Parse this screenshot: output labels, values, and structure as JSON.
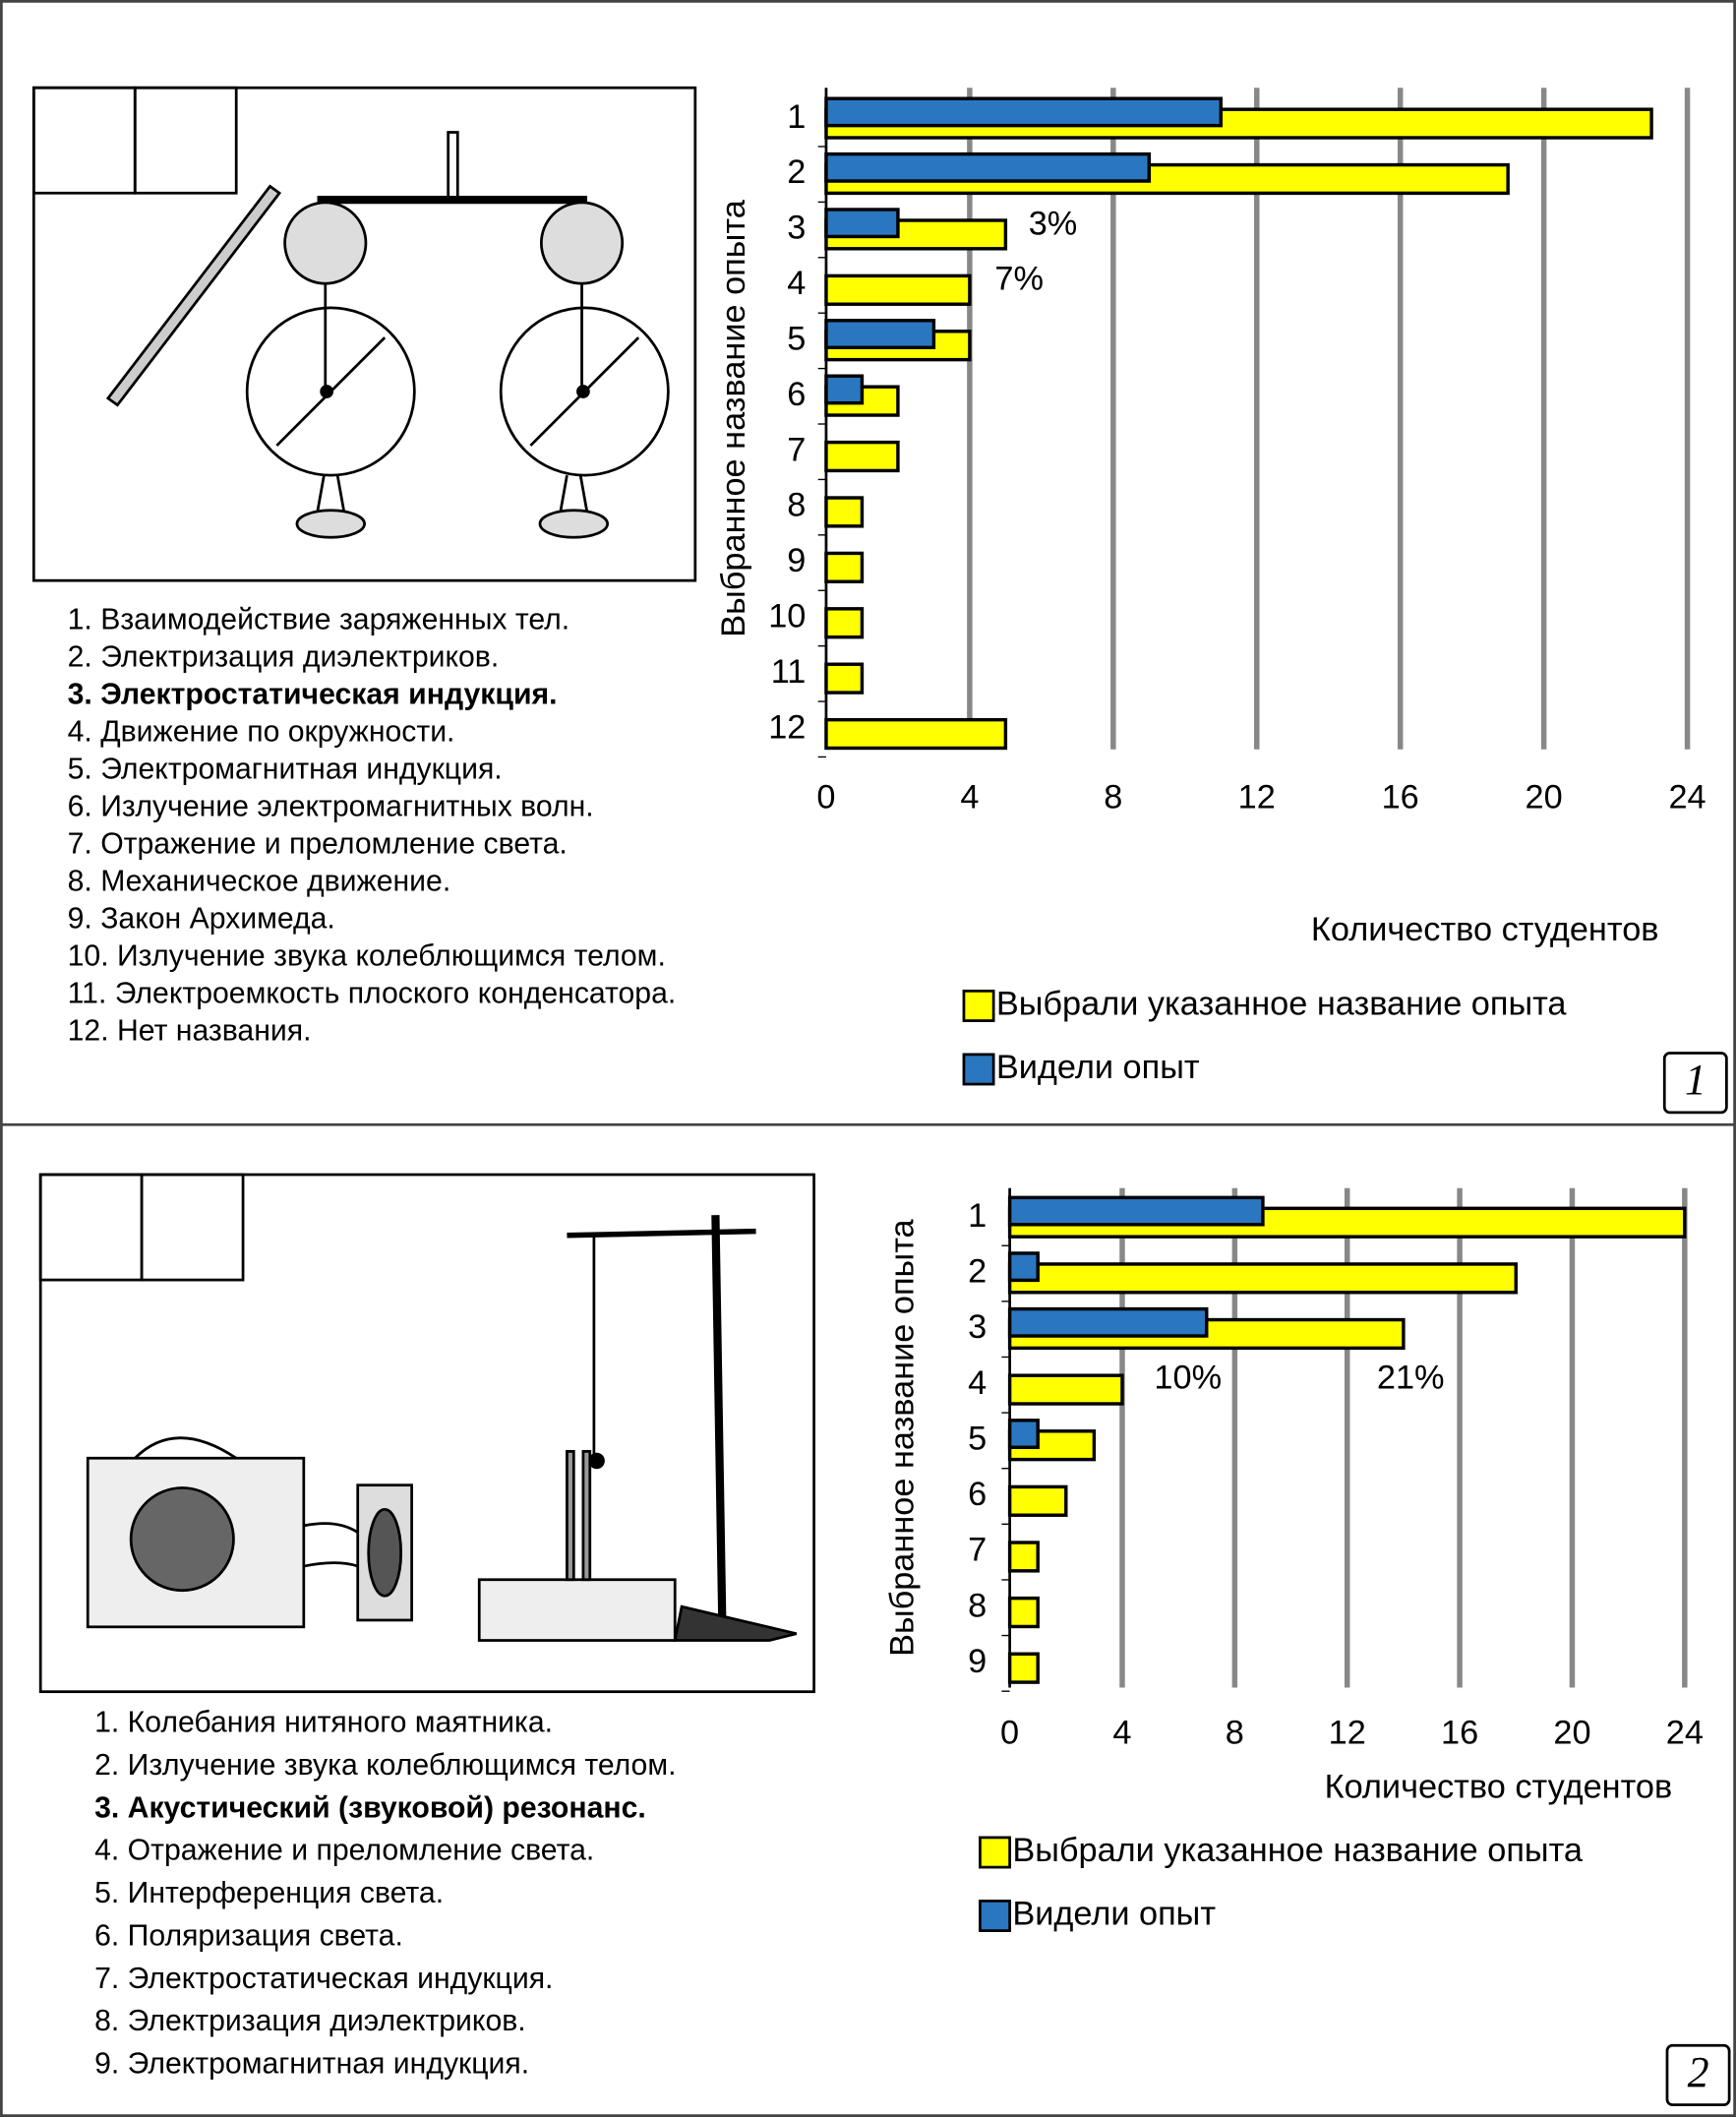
{
  "chart_data": [
    {
      "type": "bar",
      "orientation": "horizontal",
      "y_label": "Выбранное название опыта",
      "x_label": "Количество студентов",
      "categories": [
        "1",
        "2",
        "3",
        "4",
        "5",
        "6",
        "7",
        "8",
        "9",
        "10",
        "11",
        "12"
      ],
      "series": [
        {
          "name": "Выбрали указанное название опыта",
          "color": "#ffff00",
          "values": [
            23,
            19,
            5,
            4,
            4,
            2,
            2,
            1,
            1,
            1,
            1,
            5
          ]
        },
        {
          "name": "Видели опыт",
          "color": "#2a77c0",
          "values": [
            11,
            9,
            2,
            null,
            3,
            1,
            null,
            null,
            null,
            null,
            null,
            null
          ]
        }
      ],
      "xlim": [
        0,
        24
      ],
      "xticks": [
        0,
        4,
        8,
        12,
        16,
        20,
        24
      ],
      "grid": true,
      "annotations": [
        {
          "text": "3%"
        },
        {
          "text": "7%"
        }
      ]
    },
    {
      "type": "bar",
      "orientation": "horizontal",
      "y_label": "Выбранное название опыта",
      "x_label": "Количество студентов",
      "categories": [
        "1",
        "2",
        "3",
        "4",
        "5",
        "6",
        "7",
        "8",
        "9"
      ],
      "series": [
        {
          "name": "Выбрали указанное название опыта",
          "color": "#ffff00",
          "values": [
            24,
            18,
            14,
            4,
            3,
            2,
            1,
            1,
            1
          ]
        },
        {
          "name": "Видели опыт",
          "color": "#2a77c0",
          "values": [
            9,
            1,
            7,
            null,
            1,
            null,
            null,
            null,
            null
          ]
        }
      ],
      "xlim": [
        0,
        24
      ],
      "xticks": [
        0,
        4,
        8,
        12,
        16,
        20,
        24
      ],
      "grid": true,
      "annotations": [
        {
          "text": "10%"
        },
        {
          "text": "21%"
        }
      ]
    }
  ],
  "lists": [
    [
      "1. Взаимодействие заряженных тел.",
      "2. Электризация диэлектриков.",
      "3. Электростатическая индукция.",
      "4. Движение по окружности.",
      "5. Электромагнитная индукция.",
      "6. Излучение электромагнитных волн.",
      "7. Отражение и преломление света.",
      "8. Механическое движение.",
      "9. Закон Архимеда.",
      "10. Излучение звука колеблющимся телом.",
      "11. Электроемкость плоского конденсатора.",
      "12. Нет названия."
    ],
    [
      "1. Колебания нитяного маятника.",
      "2. Излучение звука колеблющимся телом.",
      "3. Акустический (звуковой) резонанс.",
      "4. Отражение и преломление света.",
      "5. Интерференция света.",
      "6. Поляризация света.",
      "7. Электростатическая индукция.",
      "8. Электризация диэлектриков.",
      "9. Электромагнитная индукция."
    ]
  ],
  "panel_labels": [
    "1",
    "2"
  ]
}
